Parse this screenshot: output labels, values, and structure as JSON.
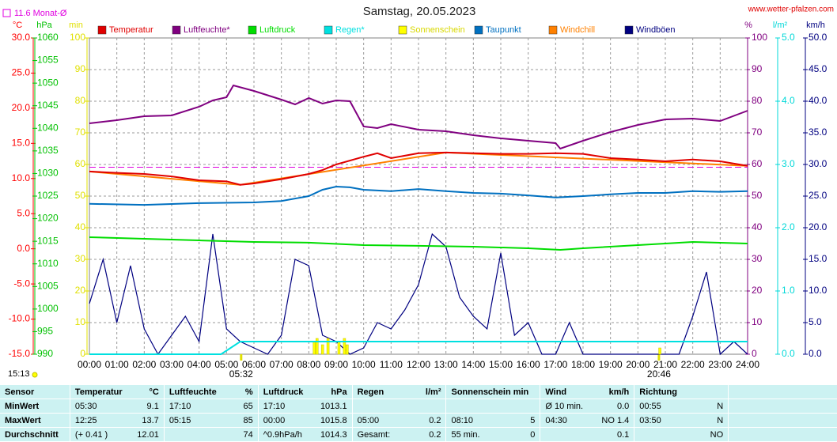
{
  "chart_data": {
    "type": "line",
    "title": "Samstag, 20.05.2023",
    "source": "www.wetter-pfalzen.com",
    "time_label": "15:13",
    "reference": {
      "value": 11.6,
      "label": "11.6 Monat-Ø",
      "color": "#e000e0",
      "axis": "°C"
    },
    "xlim": [
      0,
      24
    ],
    "xticks": [
      {
        "value": 0,
        "label": "00:00"
      },
      {
        "value": 1,
        "label": "01:00"
      },
      {
        "value": 2,
        "label": "02:00"
      },
      {
        "value": 3,
        "label": "03:00"
      },
      {
        "value": 4,
        "label": "04:00"
      },
      {
        "value": 5,
        "label": "05:00"
      },
      {
        "value": 6,
        "label": "06:00"
      },
      {
        "value": 7,
        "label": "07:00"
      },
      {
        "value": 8,
        "label": "08:00"
      },
      {
        "value": 9,
        "label": "09:00"
      },
      {
        "value": 10,
        "label": "10:00"
      },
      {
        "value": 11,
        "label": "11:00"
      },
      {
        "value": 12,
        "label": "12:00"
      },
      {
        "value": 13,
        "label": "13:00"
      },
      {
        "value": 14,
        "label": "14:00"
      },
      {
        "value": 15,
        "label": "15:00"
      },
      {
        "value": 16,
        "label": "16:00"
      },
      {
        "value": 17,
        "label": "17:00"
      },
      {
        "value": 18,
        "label": "18:00"
      },
      {
        "value": 19,
        "label": "19:00"
      },
      {
        "value": 20,
        "label": "20:00"
      },
      {
        "value": 21,
        "label": "21:00"
      },
      {
        "value": 22,
        "label": "22:00"
      },
      {
        "value": 23,
        "label": "23:00"
      },
      {
        "value": 24,
        "label": "24:00"
      }
    ],
    "markers": [
      {
        "value": 5.533,
        "label": "05:32"
      },
      {
        "value": 20.767,
        "label": "20:46"
      }
    ],
    "grid": true,
    "axes": [
      {
        "label": "°C",
        "color": "#ff0000",
        "lim": [
          -15,
          30
        ],
        "ticks": [
          {
            "value": 30,
            "label": "30.0"
          },
          {
            "value": 25,
            "label": "25.0"
          },
          {
            "value": 20,
            "label": "20.0"
          },
          {
            "value": 15,
            "label": "15.0"
          },
          {
            "value": 10,
            "label": "10.0"
          },
          {
            "value": 5,
            "label": "5.0"
          },
          {
            "value": 0,
            "label": "0.0"
          },
          {
            "value": -5,
            "label": "-5.0"
          },
          {
            "value": -10,
            "label": "-10.0"
          },
          {
            "value": -15,
            "label": "-15.0"
          }
        ]
      },
      {
        "label": "hPa",
        "color": "#00c000",
        "lim": [
          990,
          1060
        ],
        "ticks": [
          1060,
          1055,
          1050,
          1045,
          1040,
          1035,
          1030,
          1025,
          1020,
          1015,
          1010,
          1005,
          1000,
          995,
          990
        ]
      },
      {
        "label": "min",
        "color": "#e0e000",
        "lim": [
          0,
          100
        ],
        "ticks": [
          100,
          90,
          80,
          70,
          60,
          50,
          40,
          30,
          20,
          10,
          0
        ]
      },
      {
        "label": "%",
        "color": "#800080",
        "lim": [
          0,
          100
        ],
        "ticks": [
          100,
          90,
          80,
          70,
          60,
          50,
          40,
          30,
          20,
          10,
          0
        ]
      },
      {
        "label": "l/m²",
        "color": "#00d8d8",
        "lim": [
          0,
          5
        ],
        "ticks": [
          {
            "value": 5,
            "label": "5.0"
          },
          {
            "value": 4,
            "label": "4.0"
          },
          {
            "value": 3,
            "label": "3.0"
          },
          {
            "value": 2,
            "label": "2.0"
          },
          {
            "value": 1,
            "label": "1.0"
          },
          {
            "value": 0,
            "label": "0.0"
          }
        ]
      },
      {
        "label": "km/h",
        "color": "#000080",
        "lim": [
          0,
          50
        ],
        "ticks": [
          {
            "value": 50,
            "label": "50.0"
          },
          {
            "value": 45,
            "label": "45.0"
          },
          {
            "value": 40,
            "label": "40.0"
          },
          {
            "value": 35,
            "label": "35.0"
          },
          {
            "value": 30,
            "label": "30.0"
          },
          {
            "value": 25,
            "label": "25.0"
          },
          {
            "value": 20,
            "label": "20.0"
          },
          {
            "value": 15,
            "label": "15.0"
          },
          {
            "value": 10,
            "label": "10.0"
          },
          {
            "value": 5,
            "label": "5.0"
          },
          {
            "value": 0,
            "label": "0.0"
          }
        ]
      }
    ],
    "series": [
      {
        "name": "Temperatur",
        "color": "#e00000",
        "axis": "°C",
        "x": [
          0,
          1,
          2,
          3,
          4,
          5,
          5.5,
          6,
          7,
          8,
          8.5,
          9,
          10,
          10.5,
          11,
          12,
          13,
          14,
          15,
          16,
          17,
          18,
          19,
          20,
          21,
          22,
          23,
          24
        ],
        "values": [
          11.0,
          10.8,
          10.65,
          10.3,
          9.75,
          9.6,
          9.1,
          9.3,
          9.9,
          10.65,
          11.2,
          12.0,
          13.1,
          13.6,
          12.9,
          13.6,
          13.7,
          13.6,
          13.5,
          13.5,
          13.6,
          13.5,
          12.9,
          12.7,
          12.45,
          12.7,
          12.45,
          11.8
        ]
      },
      {
        "name": "Luftfeuchte*",
        "color": "#800080",
        "axis": "%",
        "x": [
          0,
          1,
          2,
          3,
          4,
          4.5,
          5,
          5.25,
          6,
          7,
          7.5,
          8,
          8.5,
          9,
          9.5,
          10,
          10.5,
          11,
          12,
          13,
          14,
          15,
          16,
          17,
          17.17,
          18,
          19,
          20,
          21,
          22,
          23,
          24
        ],
        "values": [
          73,
          74,
          75.25,
          75.5,
          78.25,
          80.25,
          81.25,
          85,
          83.25,
          80.5,
          79,
          81,
          79.25,
          80.25,
          80,
          72,
          71.5,
          72.75,
          71,
          70.5,
          69.25,
          68.25,
          67.5,
          66.75,
          65,
          67.5,
          70.25,
          72.5,
          74.25,
          74.5,
          73.75,
          77
        ]
      },
      {
        "name": "Luftdruck",
        "color": "#00dd00",
        "axis": "hPa",
        "x": [
          0,
          2,
          4,
          6,
          8,
          10,
          12,
          14,
          16,
          17.17,
          18,
          20,
          22,
          24
        ],
        "values": [
          1015.9,
          1015.55,
          1015.2,
          1014.85,
          1014.7,
          1014.15,
          1014.0,
          1013.8,
          1013.45,
          1013.1,
          1013.45,
          1014.15,
          1014.85,
          1014.5
        ]
      },
      {
        "name": "Regen*",
        "color": "#00e0e0",
        "axis": "l/m²",
        "x": [
          0,
          4.8,
          5.5,
          24
        ],
        "values": [
          0,
          0,
          0.2,
          0.2
        ]
      },
      {
        "name": "Sonnenschein",
        "color": "#ffff00",
        "axis": "min",
        "type": "bar",
        "x": [
          8.2,
          8.3,
          8.5,
          8.7,
          9.1,
          9.3,
          9.4,
          20.8
        ],
        "values": [
          4,
          5,
          3,
          5,
          4,
          5,
          3,
          2
        ]
      },
      {
        "name": "Taupunkt",
        "color": "#0070c0",
        "axis": "°C",
        "x": [
          0,
          2,
          4,
          6,
          7,
          8,
          8.5,
          9,
          9.5,
          10,
          11,
          12,
          13,
          14,
          15,
          16,
          17,
          18,
          19,
          20,
          21,
          22,
          23,
          24
        ],
        "values": [
          6.4,
          6.25,
          6.5,
          6.6,
          6.8,
          7.5,
          8.4,
          8.85,
          8.75,
          8.4,
          8.2,
          8.5,
          8.2,
          7.95,
          7.85,
          7.6,
          7.3,
          7.5,
          7.75,
          7.95,
          7.95,
          8.2,
          8.1,
          8.2
        ]
      },
      {
        "name": "Windchill",
        "color": "#ff8000",
        "axis": "°C",
        "x": [
          0,
          5.5,
          13,
          24
        ],
        "values": [
          11.0,
          9.1,
          13.7,
          11.8
        ]
      },
      {
        "name": "Windböen",
        "color": "#000080",
        "axis": "km/h",
        "x": [
          0,
          0.5,
          1,
          1.5,
          2,
          2.5,
          3,
          3.5,
          4,
          4.5,
          5,
          5.5,
          6,
          6.5,
          7,
          7.5,
          8,
          8.5,
          9,
          9.5,
          10,
          10.5,
          11,
          11.5,
          12,
          12.5,
          13,
          13.5,
          14,
          14.5,
          15,
          15.5,
          16,
          16.5,
          17,
          17.5,
          18,
          18.5,
          19,
          19.5,
          20,
          20.5,
          21,
          21.5,
          22,
          22.5,
          23,
          23.5,
          24
        ],
        "values": [
          8,
          15,
          5,
          14,
          4,
          0,
          3,
          6,
          2,
          19,
          4,
          2,
          1,
          0,
          3,
          15,
          14,
          3,
          2,
          0,
          1,
          5,
          4,
          7,
          11,
          19,
          17,
          9,
          6,
          4,
          16,
          3,
          5,
          0,
          0,
          5,
          0,
          0,
          0,
          0,
          0,
          0,
          0,
          0,
          6,
          13,
          0,
          2,
          0
        ]
      }
    ]
  },
  "table": {
    "header": [
      {
        "l": "Sensor"
      },
      {
        "l": "Temperatur",
        "r": "°C"
      },
      {
        "l": "Luftfeuchte",
        "r": "%"
      },
      {
        "l": "Luftdruck",
        "r": "hPa"
      },
      {
        "l": "Regen",
        "r": "l/m²"
      },
      {
        "l": "Sonnenschein min"
      },
      {
        "l": "Wind",
        "r": "km/h"
      },
      {
        "l": "Richtung"
      }
    ],
    "rows": [
      {
        "label": "MinWert",
        "cells": [
          {
            "l": "05:30",
            "r": "9.1"
          },
          {
            "l": "17:10",
            "r": "65"
          },
          {
            "l": "17:10",
            "r": "1013.1"
          },
          {},
          {},
          {
            "l": "Ø 10 min.",
            "r": "0.0"
          },
          {
            "l": "00:55",
            "r": "N"
          }
        ]
      },
      {
        "label": "MaxWert",
        "cells": [
          {
            "l": "12:25",
            "r": "13.7"
          },
          {
            "l": "05:15",
            "r": "85"
          },
          {
            "l": "00:00",
            "r": "1015.8"
          },
          {
            "l": "05:00",
            "r": "0.2"
          },
          {
            "l": "08:10",
            "r": "5"
          },
          {
            "l": "04:30",
            "r": "NO 1.4"
          },
          {
            "l": "03:50",
            "r": "N"
          }
        ]
      },
      {
        "label": "Durchschnitt",
        "cells": [
          {
            "l": "(+ 0.41 )",
            "r": "12.01"
          },
          {
            "r": "74"
          },
          {
            "l": "^0.9hPa/h",
            "r": "1014.3"
          },
          {
            "l": "Gesamt:",
            "r": "0.2"
          },
          {
            "l": "55 min.",
            "r": "0"
          },
          {
            "r": "0.1"
          },
          {
            "r": "NO"
          }
        ]
      }
    ]
  }
}
